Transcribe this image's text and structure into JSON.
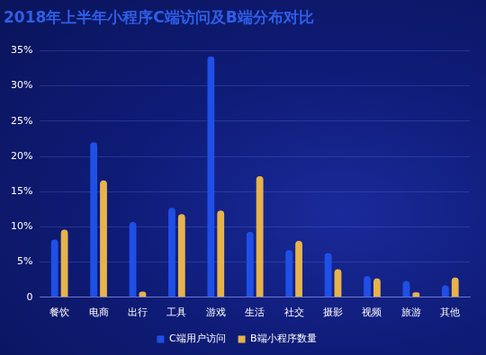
{
  "chart_data": {
    "type": "bar",
    "title": "2018年上半年小程序C端访问及B端分布对比",
    "categories": [
      "餐饮",
      "电商",
      "出行",
      "工具",
      "游戏",
      "生活",
      "社交",
      "摄影",
      "视频",
      "旅游",
      "其他"
    ],
    "series": [
      {
        "name": "C端用户访问",
        "color": "#1f4fe6",
        "values": [
          8.2,
          22.0,
          10.7,
          12.7,
          34.2,
          9.3,
          6.7,
          6.3,
          3.0,
          2.3,
          1.7
        ]
      },
      {
        "name": "B端小程序数量",
        "color": "#e6b34c",
        "values": [
          9.6,
          16.6,
          0.8,
          11.8,
          12.3,
          17.2,
          8.0,
          4.0,
          2.7,
          0.7,
          2.8
        ]
      }
    ],
    "ylim": [
      0,
      35
    ],
    "yticks": [
      0,
      {
        "value": 5,
        "label": "5%"
      },
      {
        "value": 10,
        "label": "10%"
      },
      {
        "value": 15,
        "label": "15%"
      },
      {
        "value": 20,
        "label": "20%"
      },
      {
        "value": 25,
        "label": "25%"
      },
      {
        "value": 30,
        "label": "30%"
      },
      {
        "value": 35,
        "label": "35%"
      }
    ],
    "grid": true,
    "legend": "bottom"
  }
}
